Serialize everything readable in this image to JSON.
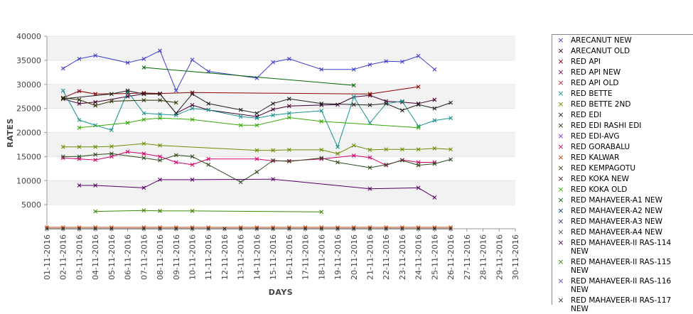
{
  "chart_data": {
    "type": "line",
    "xlabel": "DAYS",
    "ylabel": "RATES",
    "ylim": [
      0,
      40000
    ],
    "yticks": [
      5000,
      10000,
      15000,
      20000,
      25000,
      30000,
      35000,
      40000
    ],
    "grid": "alternating horizontal bands",
    "legend_position": "right",
    "categories": [
      "01-11-2016",
      "02-11-2016",
      "03-11-2016",
      "04-11-2016",
      "05-11-2016",
      "06-11-2016",
      "07-11-2016",
      "08-11-2016",
      "09-11-2016",
      "10-11-2016",
      "11-11-2016",
      "12-11-2016",
      "13-11-2016",
      "14-11-2016",
      "15-11-2016",
      "16-11-2016",
      "17-11-2016",
      "18-11-2016",
      "19-11-2016",
      "20-11-2016",
      "21-11-2016",
      "22-11-2016",
      "23-11-2016",
      "24-11-2016",
      "25-11-2016",
      "26-11-2016",
      "27-11-2016",
      "28-11-2016",
      "29-11-2016",
      "30-11-2016"
    ],
    "series": [
      {
        "name": "ARECANUT NEW",
        "color": "#3d3dcc",
        "values": [
          null,
          33300,
          35300,
          36000,
          null,
          34500,
          35300,
          37000,
          28700,
          35100,
          32700,
          null,
          null,
          31300,
          34600,
          35300,
          null,
          33100,
          null,
          33100,
          34100,
          34800,
          34700,
          35900,
          33100,
          null,
          null,
          null,
          null,
          null
        ]
      },
      {
        "name": "ARECANUT OLD",
        "color": "#400030",
        "values": [
          null,
          27000,
          26000,
          26300,
          null,
          27500,
          28000,
          28000,
          24000,
          25700,
          24700,
          null,
          null,
          23300,
          24800,
          25500,
          null,
          25700,
          25800,
          27400,
          27700,
          26500,
          26300,
          26000,
          26800,
          null,
          null,
          null,
          null,
          null
        ]
      },
      {
        "name": "RED API",
        "color": "#8b0000",
        "values": [
          null,
          27200,
          28600,
          28000,
          null,
          28100,
          28200,
          28100,
          null,
          28300,
          null,
          null,
          null,
          null,
          null,
          null,
          null,
          null,
          null,
          null,
          28000,
          null,
          null,
          29500,
          null,
          null,
          null,
          null,
          null,
          null
        ]
      },
      {
        "name": "RED API NEW",
        "color": "#7a0060",
        "values": [
          null,
          null,
          null,
          null,
          null,
          null,
          null,
          null,
          null,
          null,
          null,
          null,
          null,
          null,
          null,
          null,
          null,
          null,
          null,
          null,
          null,
          null,
          null,
          null,
          null,
          null,
          null,
          null,
          null,
          null
        ]
      },
      {
        "name": "RED API OLD",
        "color": "#cc2020",
        "values": [
          null,
          null,
          null,
          null,
          null,
          null,
          null,
          null,
          null,
          null,
          null,
          null,
          null,
          null,
          null,
          null,
          null,
          null,
          null,
          null,
          null,
          null,
          null,
          null,
          null,
          null,
          null,
          null,
          null,
          null
        ]
      },
      {
        "name": "RED BETTE",
        "color": "#1a9090",
        "values": [
          null,
          28700,
          22600,
          21500,
          20500,
          28500,
          24000,
          23800,
          23600,
          25000,
          24700,
          null,
          23300,
          23000,
          23600,
          24000,
          null,
          24500,
          17000,
          27400,
          22000,
          26000,
          26500,
          21300,
          22500,
          23000,
          null,
          null,
          null,
          null
        ]
      },
      {
        "name": "RED BETTE 2ND",
        "color": "#6b8e00",
        "values": [
          null,
          17000,
          17000,
          17000,
          17100,
          null,
          17700,
          17300,
          null,
          null,
          null,
          null,
          null,
          16300,
          16300,
          16400,
          null,
          16400,
          15600,
          17300,
          16400,
          16500,
          16500,
          16500,
          16700,
          16500,
          null,
          null,
          null,
          null
        ]
      },
      {
        "name": "RED EDI",
        "color": "#202020",
        "values": [
          null,
          27000,
          null,
          null,
          28000,
          28700,
          28000,
          28000,
          24000,
          28000,
          26000,
          null,
          24700,
          24000,
          26000,
          27000,
          null,
          26000,
          null,
          25800,
          25700,
          26000,
          24600,
          25800,
          25000,
          26200,
          null,
          null,
          null,
          null
        ]
      },
      {
        "name": "RED EDI RASHI EDI",
        "color": "#303000",
        "values": [
          null,
          27200,
          26800,
          25600,
          26500,
          null,
          26700,
          26700,
          26200,
          null,
          null,
          null,
          null,
          null,
          null,
          null,
          null,
          null,
          null,
          null,
          null,
          null,
          null,
          null,
          null,
          null,
          null,
          null,
          null,
          null
        ]
      },
      {
        "name": "RED EDI-AVG",
        "color": "#8a2be2",
        "values": [
          null,
          null,
          null,
          null,
          null,
          null,
          null,
          null,
          null,
          null,
          null,
          null,
          null,
          null,
          null,
          null,
          null,
          null,
          null,
          null,
          null,
          null,
          null,
          null,
          null,
          null,
          null,
          null,
          null,
          null
        ]
      },
      {
        "name": "RED GORABALU",
        "color": "#d1006b",
        "values": [
          null,
          14700,
          14500,
          14300,
          15000,
          16000,
          15600,
          15000,
          13800,
          13300,
          14500,
          null,
          null,
          14500,
          14100,
          14100,
          null,
          14500,
          null,
          15200,
          14800,
          13200,
          14300,
          13800,
          13800,
          null,
          null,
          null,
          null,
          null
        ]
      },
      {
        "name": "RED KALWAR",
        "color": "#cc4400",
        "values": [
          300,
          300,
          300,
          300,
          300,
          null,
          300,
          300,
          300,
          300,
          300,
          null,
          300,
          300,
          300,
          300,
          300,
          300,
          300,
          300,
          300,
          300,
          300,
          300,
          300,
          300,
          null,
          null,
          null,
          null
        ]
      },
      {
        "name": "RED KEMPAGOTU",
        "color": "#2e4a1e",
        "values": [
          null,
          15000,
          15000,
          15400,
          15600,
          null,
          14700,
          14200,
          15300,
          15000,
          13300,
          null,
          9700,
          11800,
          14200,
          14000,
          null,
          14700,
          13800,
          null,
          12700,
          13300,
          14200,
          13200,
          13500,
          14400,
          null,
          null,
          null,
          null
        ]
      },
      {
        "name": "RED KOKA NEW",
        "color": "#5a1a1a",
        "values": [
          null,
          null,
          null,
          null,
          null,
          null,
          null,
          null,
          null,
          null,
          null,
          null,
          null,
          null,
          null,
          null,
          null,
          null,
          null,
          null,
          null,
          null,
          null,
          null,
          null,
          null,
          null,
          null,
          null,
          null
        ]
      },
      {
        "name": "RED KOKA OLD",
        "color": "#33aa00",
        "values": [
          null,
          null,
          21000,
          null,
          null,
          22000,
          22700,
          23000,
          null,
          22700,
          null,
          null,
          21500,
          21500,
          null,
          23100,
          null,
          22300,
          null,
          null,
          null,
          null,
          null,
          21000,
          null,
          null,
          null,
          null,
          null,
          null
        ]
      },
      {
        "name": "RED MAHAVEER-A1 NEW",
        "color": "#006600",
        "values": [
          null,
          null,
          null,
          null,
          null,
          null,
          33500,
          null,
          null,
          null,
          null,
          null,
          null,
          null,
          null,
          null,
          null,
          null,
          null,
          29800,
          null,
          null,
          null,
          null,
          null,
          null,
          null,
          null,
          null,
          null
        ]
      },
      {
        "name": "RED MAHAVEER-A2 NEW",
        "color": "#004080",
        "values": [
          null,
          null,
          null,
          null,
          null,
          null,
          null,
          null,
          null,
          null,
          null,
          null,
          null,
          null,
          null,
          null,
          null,
          null,
          null,
          null,
          null,
          null,
          null,
          null,
          null,
          null,
          null,
          null,
          null,
          null
        ]
      },
      {
        "name": "RED MAHAVEER-A3 NEW",
        "color": "#403080",
        "values": [
          null,
          null,
          null,
          null,
          null,
          null,
          null,
          null,
          null,
          null,
          null,
          null,
          null,
          null,
          null,
          null,
          null,
          null,
          null,
          null,
          null,
          null,
          null,
          null,
          null,
          null,
          null,
          null,
          null,
          null
        ]
      },
      {
        "name": "RED MAHAVEER-A4 NEW",
        "color": "#505050",
        "values": [
          null,
          null,
          null,
          null,
          null,
          null,
          null,
          null,
          null,
          null,
          null,
          null,
          null,
          null,
          null,
          null,
          null,
          null,
          null,
          null,
          null,
          null,
          null,
          null,
          null,
          null,
          null,
          null,
          null,
          null
        ]
      },
      {
        "name": "RED MAHAVEER-II RAS-114 NEW",
        "color": "#550066",
        "values": [
          null,
          null,
          9000,
          9000,
          null,
          null,
          8500,
          10200,
          null,
          10200,
          null,
          null,
          null,
          null,
          10300,
          null,
          null,
          null,
          null,
          null,
          8300,
          null,
          null,
          8500,
          6500,
          null,
          null,
          null,
          null,
          null
        ]
      },
      {
        "name": "RED MAHAVEER-II RAS-115 NEW",
        "color": "#3a8a00",
        "values": [
          null,
          null,
          null,
          3600,
          null,
          null,
          3800,
          3700,
          null,
          3700,
          null,
          null,
          null,
          null,
          null,
          null,
          null,
          3500,
          null,
          null,
          null,
          null,
          null,
          null,
          null,
          null,
          null,
          null,
          null,
          null
        ]
      },
      {
        "name": "RED MAHAVEER-II RAS-116 NEW",
        "color": "#5a5aaa",
        "values": [
          null,
          null,
          null,
          null,
          null,
          null,
          null,
          null,
          null,
          null,
          null,
          null,
          null,
          null,
          null,
          null,
          null,
          null,
          null,
          null,
          null,
          null,
          null,
          null,
          null,
          null,
          null,
          null,
          null,
          null
        ]
      },
      {
        "name": "RED MAHAVEER-II RAS-117 NEW",
        "color": "#333333",
        "values": [
          0,
          0,
          0,
          0,
          0,
          null,
          0,
          0,
          0,
          0,
          0,
          0,
          0,
          0,
          0,
          0,
          0,
          0,
          0,
          0,
          0,
          0,
          0,
          0,
          0,
          0,
          null,
          null,
          null,
          null
        ]
      }
    ]
  }
}
